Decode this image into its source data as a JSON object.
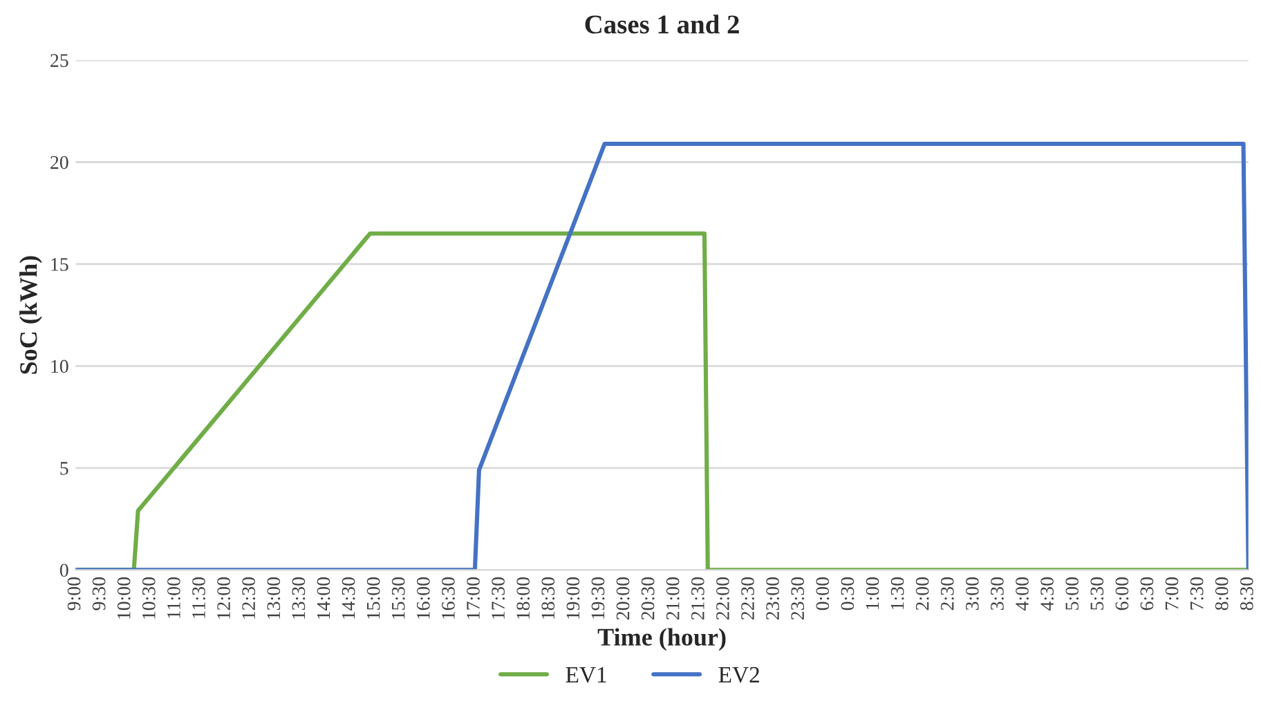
{
  "chart_data": {
    "type": "line",
    "title": "Cases 1 and 2",
    "xlabel": "Time (hour)",
    "ylabel": "SoC (kWh)",
    "series": [
      {
        "name": "EV1",
        "color": "#70ad47",
        "x": [
          "2000-01-01T09:00",
          "2000-01-01T10:10",
          "2000-01-01T10:15",
          "2000-01-01T14:54",
          "2000-01-01T21:36",
          "2000-01-01T21:40",
          "2000-01-02T08:30"
        ],
        "values": [
          0,
          0,
          2.9,
          16.5,
          16.5,
          0,
          0
        ]
      },
      {
        "name": "EV2",
        "color": "#4472c4",
        "x": [
          "2000-01-01T09:00",
          "2000-01-01T17:00",
          "2000-01-01T17:05",
          "2000-01-01T19:36",
          "2000-01-02T08:24",
          "2000-01-02T08:30"
        ],
        "values": [
          0,
          0,
          4.9,
          20.9,
          20.9,
          0
        ]
      }
    ],
    "xlim": [
      "2000-01-01T09:00",
      "2000-01-02T08:30"
    ],
    "xticks": [
      {
        "value": "2000-01-01T09:00",
        "label": "9:00"
      },
      {
        "value": "2000-01-01T09:30",
        "label": "9:30"
      },
      {
        "value": "2000-01-01T10:00",
        "label": "10:00"
      },
      {
        "value": "2000-01-01T10:30",
        "label": "10:30"
      },
      {
        "value": "2000-01-01T11:00",
        "label": "11:00"
      },
      {
        "value": "2000-01-01T11:30",
        "label": "11:30"
      },
      {
        "value": "2000-01-01T12:00",
        "label": "12:00"
      },
      {
        "value": "2000-01-01T12:30",
        "label": "12:30"
      },
      {
        "value": "2000-01-01T13:00",
        "label": "13:00"
      },
      {
        "value": "2000-01-01T13:30",
        "label": "13:30"
      },
      {
        "value": "2000-01-01T14:00",
        "label": "14:00"
      },
      {
        "value": "2000-01-01T14:30",
        "label": "14:30"
      },
      {
        "value": "2000-01-01T15:00",
        "label": "15:00"
      },
      {
        "value": "2000-01-01T15:30",
        "label": "15:30"
      },
      {
        "value": "2000-01-01T16:00",
        "label": "16:00"
      },
      {
        "value": "2000-01-01T16:30",
        "label": "16:30"
      },
      {
        "value": "2000-01-01T17:00",
        "label": "17:00"
      },
      {
        "value": "2000-01-01T17:30",
        "label": "17:30"
      },
      {
        "value": "2000-01-01T18:00",
        "label": "18:00"
      },
      {
        "value": "2000-01-01T18:30",
        "label": "18:30"
      },
      {
        "value": "2000-01-01T19:00",
        "label": "19:00"
      },
      {
        "value": "2000-01-01T19:30",
        "label": "19:30"
      },
      {
        "value": "2000-01-01T20:00",
        "label": "20:00"
      },
      {
        "value": "2000-01-01T20:30",
        "label": "20:30"
      },
      {
        "value": "2000-01-01T21:00",
        "label": "21:00"
      },
      {
        "value": "2000-01-01T21:30",
        "label": "21:30"
      },
      {
        "value": "2000-01-01T22:00",
        "label": "22:00"
      },
      {
        "value": "2000-01-01T22:30",
        "label": "22:30"
      },
      {
        "value": "2000-01-01T23:00",
        "label": "23:00"
      },
      {
        "value": "2000-01-01T23:30",
        "label": "23:30"
      },
      {
        "value": "2000-01-02T00:00",
        "label": "0:00"
      },
      {
        "value": "2000-01-02T00:30",
        "label": "0:30"
      },
      {
        "value": "2000-01-02T01:00",
        "label": "1:00"
      },
      {
        "value": "2000-01-02T01:30",
        "label": "1:30"
      },
      {
        "value": "2000-01-02T02:00",
        "label": "2:00"
      },
      {
        "value": "2000-01-02T02:30",
        "label": "2:30"
      },
      {
        "value": "2000-01-02T03:00",
        "label": "3:00"
      },
      {
        "value": "2000-01-02T03:30",
        "label": "3:30"
      },
      {
        "value": "2000-01-02T04:00",
        "label": "4:00"
      },
      {
        "value": "2000-01-02T04:30",
        "label": "4:30"
      },
      {
        "value": "2000-01-02T05:00",
        "label": "5:00"
      },
      {
        "value": "2000-01-02T05:30",
        "label": "5:30"
      },
      {
        "value": "2000-01-02T06:00",
        "label": "6:00"
      },
      {
        "value": "2000-01-02T06:30",
        "label": "6:30"
      },
      {
        "value": "2000-01-02T07:00",
        "label": "7:00"
      },
      {
        "value": "2000-01-02T07:30",
        "label": "7:30"
      },
      {
        "value": "2000-01-02T08:00",
        "label": "8:00"
      },
      {
        "value": "2000-01-02T08:30",
        "label": "8:30"
      }
    ],
    "ylim": [
      0,
      25
    ],
    "yticks": [
      0,
      5,
      10,
      15,
      20,
      25
    ],
    "grid": "y",
    "legend": "bottom",
    "marker": "none",
    "line_style": "solid"
  }
}
